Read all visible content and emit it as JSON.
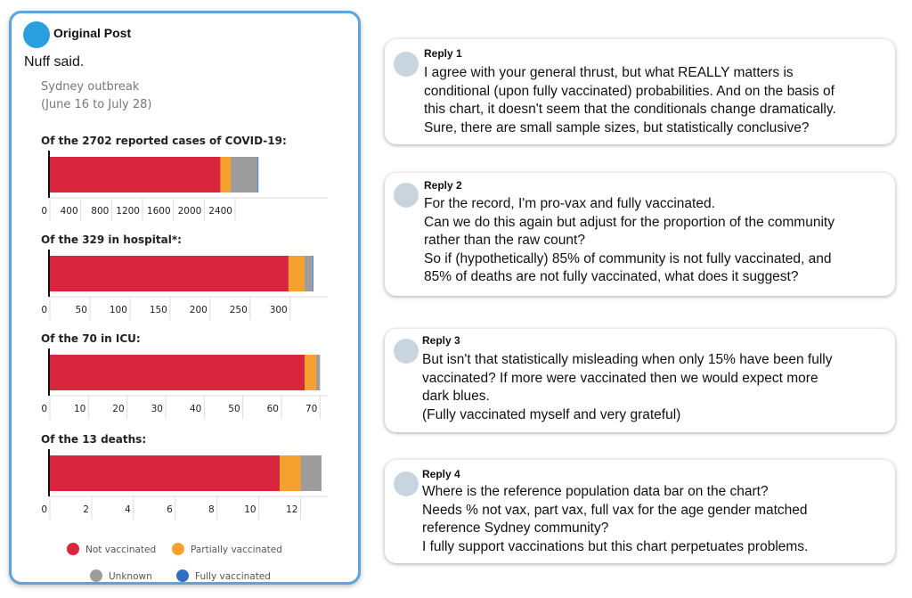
{
  "post": {
    "author": "Original Post",
    "text": "Nuff said.",
    "subtitle_line1": "Sydney outbreak",
    "subtitle_line2": "(June 16 to July 28)"
  },
  "chart_data": [
    {
      "type": "bar",
      "title": "Of the 2702 reported cases of COVID-19:",
      "stacked": true,
      "orientation": "horizontal",
      "xlim": [
        0,
        3600
      ],
      "ticks": [
        "0",
        "400",
        "800",
        "1200",
        "1600",
        "2000",
        "2400"
      ],
      "series": [
        {
          "name": "Not vaccinated",
          "values": [
            2209
          ]
        },
        {
          "name": "Partially vaccinated",
          "values": [
            134
          ]
        },
        {
          "name": "Unknown",
          "values": [
            348
          ]
        },
        {
          "name": "Fully vaccinated",
          "values": [
            11
          ]
        }
      ]
    },
    {
      "type": "bar",
      "title": "Of the 329 in hospital*:",
      "stacked": true,
      "orientation": "horizontal",
      "xlim": [
        0,
        347
      ],
      "ticks": [
        "0",
        "50",
        "100",
        "150",
        "200",
        "250",
        "300"
      ],
      "series": [
        {
          "name": "Not vaccinated",
          "values": [
            298
          ]
        },
        {
          "name": "Partially vaccinated",
          "values": [
            20
          ]
        },
        {
          "name": "Unknown",
          "values": [
            10
          ]
        },
        {
          "name": "Fully vaccinated",
          "values": [
            1
          ]
        }
      ]
    },
    {
      "type": "bar",
      "title": "Of the 70 in ICU:",
      "stacked": true,
      "orientation": "horizontal",
      "xlim": [
        0,
        72
      ],
      "ticks": [
        "0",
        "10",
        "20",
        "30",
        "40",
        "50",
        "60",
        "70"
      ],
      "series": [
        {
          "name": "Not vaccinated",
          "values": [
            66
          ]
        },
        {
          "name": "Partially vaccinated",
          "values": [
            3
          ]
        },
        {
          "name": "Unknown",
          "values": [
            1
          ]
        },
        {
          "name": "Fully vaccinated",
          "values": [
            0
          ]
        }
      ]
    },
    {
      "type": "bar",
      "title": "Of the 13 deaths:",
      "stacked": true,
      "orientation": "horizontal",
      "xlim": [
        0,
        13.3
      ],
      "ticks": [
        "0",
        "2",
        "4",
        "6",
        "8",
        "10",
        "12"
      ],
      "series": [
        {
          "name": "Not vaccinated",
          "values": [
            11
          ]
        },
        {
          "name": "Partially vaccinated",
          "values": [
            1
          ]
        },
        {
          "name": "Unknown",
          "values": [
            1
          ]
        },
        {
          "name": "Fully vaccinated",
          "values": [
            0
          ]
        }
      ]
    }
  ],
  "legend": [
    {
      "name": "Not vaccinated",
      "color": "#d7263d"
    },
    {
      "name": "Partially vaccinated",
      "color": "#f6a02d"
    },
    {
      "name": "Unknown",
      "color": "#9d9d9d"
    },
    {
      "name": "Fully vaccinated",
      "color": "#2f6fc6"
    }
  ],
  "replies": [
    {
      "label": "Reply 1",
      "text": "I agree with your general thrust, but what REALLY matters is\nconditional (upon fully vaccinated) probabilities. And on the basis of\nthis chart, it doesn't seem that the conditionals change dramatically.\nSure, there are small sample sizes, but statistically conclusive?"
    },
    {
      "label": "Reply 2",
      "text": "For the record, I'm pro-vax and fully vaccinated.\nCan we do this again but adjust for the proportion of the community\nrather than the raw count?\nSo if (hypothetically) 85% of community is not fully vaccinated, and\n85% of deaths are not fully vaccinated, what does it suggest?"
    },
    {
      "label": "Reply 3",
      "text": "But isn't that statistically misleading when only 15% have been fully\nvaccinated? If more were vaccinated then we would expect more\ndark blues.\n(Fully vaccinated myself and very grateful)"
    },
    {
      "label": "Reply 4",
      "text": "Where is the reference population data bar on the chart?\nNeeds % not vax, part vax, full vax for the age gender matched\nreference Sydney community?\nI fully support vaccinations but this chart perpetuates problems."
    }
  ]
}
